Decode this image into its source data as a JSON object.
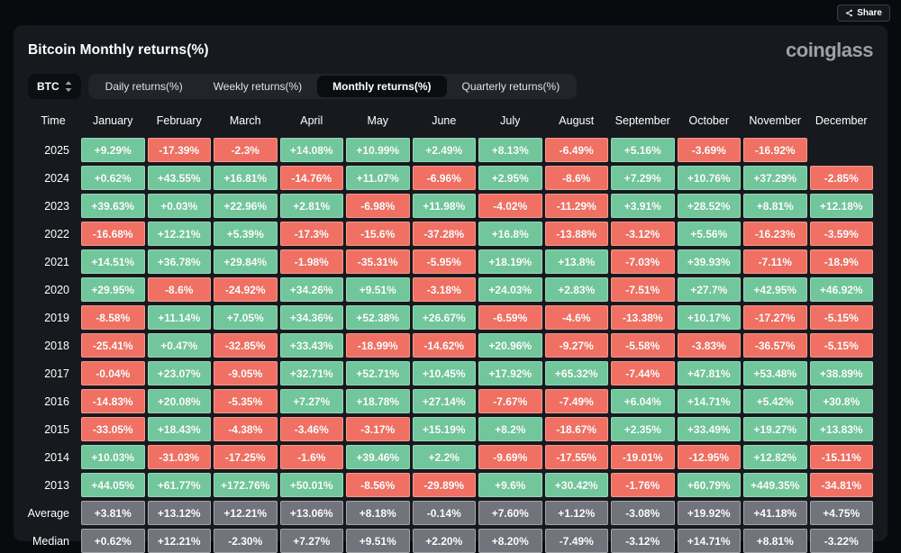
{
  "header": {
    "title": "Bitcoin Monthly returns(%)",
    "share_label": "Share",
    "logo": "coinglass"
  },
  "controls": {
    "coin": "BTC",
    "tabs": [
      {
        "label": "Daily returns(%)",
        "active": false
      },
      {
        "label": "Weekly returns(%)",
        "active": false
      },
      {
        "label": "Monthly returns(%)",
        "active": true
      },
      {
        "label": "Quarterly returns(%)",
        "active": false
      }
    ]
  },
  "colors": {
    "positive": "#71c79b",
    "negative": "#f07163",
    "neutral": "#71747a",
    "panel": "#17191e",
    "background": "#080a0e"
  },
  "table": {
    "time_header": "Time",
    "months": [
      "January",
      "February",
      "March",
      "April",
      "May",
      "June",
      "July",
      "August",
      "September",
      "October",
      "November",
      "December"
    ],
    "rows": [
      {
        "label": "2025",
        "type": "year",
        "values": [
          "+9.29%",
          "-17.39%",
          "-2.3%",
          "+14.08%",
          "+10.99%",
          "+2.49%",
          "+8.13%",
          "-6.49%",
          "+5.16%",
          "-3.69%",
          "-16.92%",
          null
        ]
      },
      {
        "label": "2024",
        "type": "year",
        "values": [
          "+0.62%",
          "+43.55%",
          "+16.81%",
          "-14.76%",
          "+11.07%",
          "-6.96%",
          "+2.95%",
          "-8.6%",
          "+7.29%",
          "+10.76%",
          "+37.29%",
          "-2.85%"
        ]
      },
      {
        "label": "2023",
        "type": "year",
        "values": [
          "+39.63%",
          "+0.03%",
          "+22.96%",
          "+2.81%",
          "-6.98%",
          "+11.98%",
          "-4.02%",
          "-11.29%",
          "+3.91%",
          "+28.52%",
          "+8.81%",
          "+12.18%"
        ]
      },
      {
        "label": "2022",
        "type": "year",
        "values": [
          "-16.68%",
          "+12.21%",
          "+5.39%",
          "-17.3%",
          "-15.6%",
          "-37.28%",
          "+16.8%",
          "-13.88%",
          "-3.12%",
          "+5.56%",
          "-16.23%",
          "-3.59%"
        ]
      },
      {
        "label": "2021",
        "type": "year",
        "values": [
          "+14.51%",
          "+36.78%",
          "+29.84%",
          "-1.98%",
          "-35.31%",
          "-5.95%",
          "+18.19%",
          "+13.8%",
          "-7.03%",
          "+39.93%",
          "-7.11%",
          "-18.9%"
        ]
      },
      {
        "label": "2020",
        "type": "year",
        "values": [
          "+29.95%",
          "-8.6%",
          "-24.92%",
          "+34.26%",
          "+9.51%",
          "-3.18%",
          "+24.03%",
          "+2.83%",
          "-7.51%",
          "+27.7%",
          "+42.95%",
          "+46.92%"
        ]
      },
      {
        "label": "2019",
        "type": "year",
        "values": [
          "-8.58%",
          "+11.14%",
          "+7.05%",
          "+34.36%",
          "+52.38%",
          "+26.67%",
          "-6.59%",
          "-4.6%",
          "-13.38%",
          "+10.17%",
          "-17.27%",
          "-5.15%"
        ]
      },
      {
        "label": "2018",
        "type": "year",
        "values": [
          "-25.41%",
          "+0.47%",
          "-32.85%",
          "+33.43%",
          "-18.99%",
          "-14.62%",
          "+20.96%",
          "-9.27%",
          "-5.58%",
          "-3.83%",
          "-36.57%",
          "-5.15%"
        ]
      },
      {
        "label": "2017",
        "type": "year",
        "values": [
          "-0.04%",
          "+23.07%",
          "-9.05%",
          "+32.71%",
          "+52.71%",
          "+10.45%",
          "+17.92%",
          "+65.32%",
          "-7.44%",
          "+47.81%",
          "+53.48%",
          "+38.89%"
        ]
      },
      {
        "label": "2016",
        "type": "year",
        "values": [
          "-14.83%",
          "+20.08%",
          "-5.35%",
          "+7.27%",
          "+18.78%",
          "+27.14%",
          "-7.67%",
          "-7.49%",
          "+6.04%",
          "+14.71%",
          "+5.42%",
          "+30.8%"
        ]
      },
      {
        "label": "2015",
        "type": "year",
        "values": [
          "-33.05%",
          "+18.43%",
          "-4.38%",
          "-3.46%",
          "-3.17%",
          "+15.19%",
          "+8.2%",
          "-18.67%",
          "+2.35%",
          "+33.49%",
          "+19.27%",
          "+13.83%"
        ]
      },
      {
        "label": "2014",
        "type": "year",
        "values": [
          "+10.03%",
          "-31.03%",
          "-17.25%",
          "-1.6%",
          "+39.46%",
          "+2.2%",
          "-9.69%",
          "-17.55%",
          "-19.01%",
          "-12.95%",
          "+12.82%",
          "-15.11%"
        ]
      },
      {
        "label": "2013",
        "type": "year",
        "values": [
          "+44.05%",
          "+61.77%",
          "+172.76%",
          "+50.01%",
          "-8.56%",
          "-29.89%",
          "+9.6%",
          "+30.42%",
          "-1.76%",
          "+60.79%",
          "+449.35%",
          "-34.81%"
        ]
      },
      {
        "label": "Average",
        "type": "stat",
        "values": [
          "+3.81%",
          "+13.12%",
          "+12.21%",
          "+13.06%",
          "+8.18%",
          "-0.14%",
          "+7.60%",
          "+1.12%",
          "-3.08%",
          "+19.92%",
          "+41.18%",
          "+4.75%"
        ]
      },
      {
        "label": "Median",
        "type": "stat",
        "values": [
          "+0.62%",
          "+12.21%",
          "-2.30%",
          "+7.27%",
          "+9.51%",
          "+2.20%",
          "+8.20%",
          "-7.49%",
          "-3.12%",
          "+14.71%",
          "+8.81%",
          "-3.22%"
        ]
      }
    ]
  }
}
